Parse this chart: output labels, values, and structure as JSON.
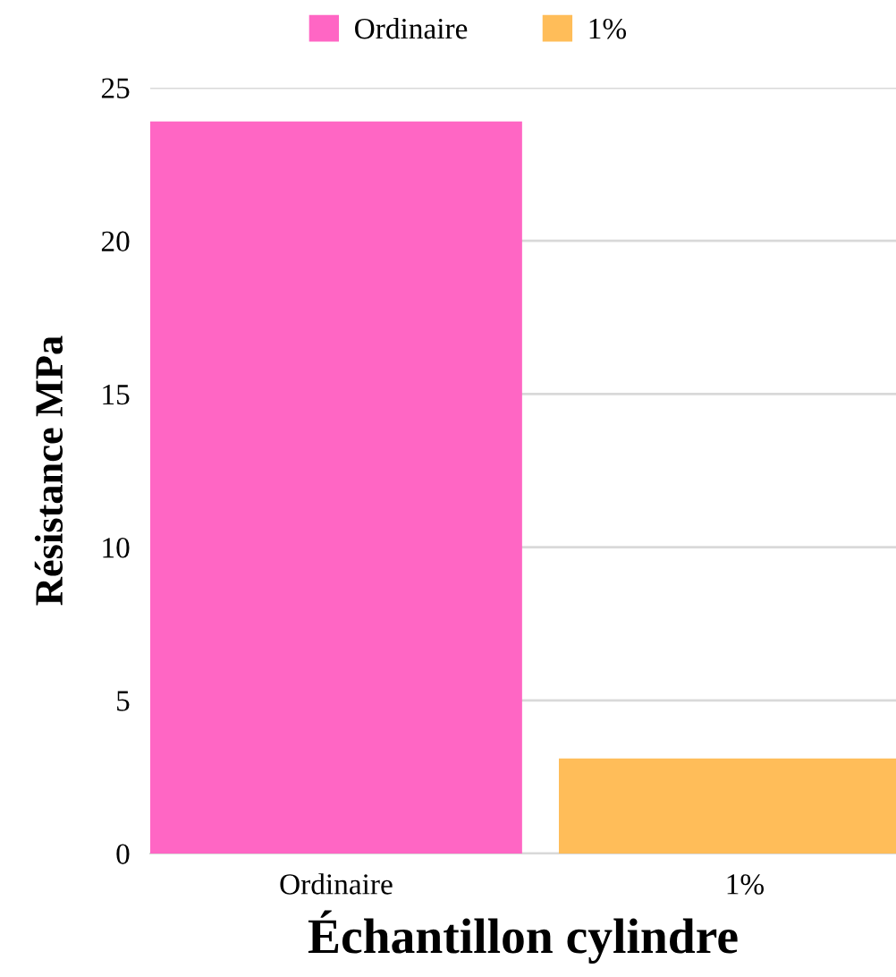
{
  "chart_data": {
    "type": "bar",
    "xlabel": "Échantillon cylindre",
    "ylabel": "Résistance MPa",
    "categories": [
      "Ordinaire",
      "1%"
    ],
    "series": [
      {
        "name": "Ordinaire",
        "color": "#ff66c4",
        "values": [
          23.9,
          null
        ]
      },
      {
        "name": "1%",
        "color": "#ffbd59",
        "values": [
          null,
          3.1
        ]
      }
    ],
    "ylim": [
      0,
      25
    ],
    "yticks": [
      0,
      5,
      10,
      15,
      20,
      25
    ],
    "grid": "y",
    "legend": "top"
  }
}
